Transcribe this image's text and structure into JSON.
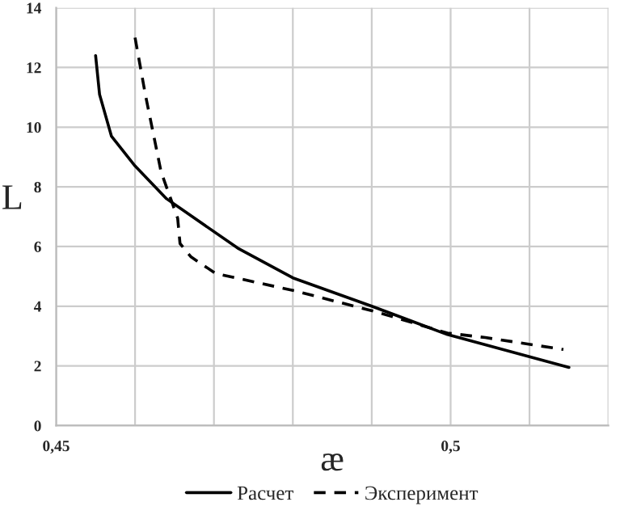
{
  "chart_data": {
    "type": "line",
    "xlabel": "æ",
    "ylabel": "L",
    "xlim": [
      0.45,
      0.52
    ],
    "ylim": [
      0,
      14
    ],
    "xticks": [
      {
        "value": 0.45,
        "label": "0,45"
      },
      {
        "value": 0.46,
        "label": null
      },
      {
        "value": 0.47,
        "label": null
      },
      {
        "value": 0.48,
        "label": null
      },
      {
        "value": 0.49,
        "label": null
      },
      {
        "value": 0.5,
        "label": "0,5"
      },
      {
        "value": 0.51,
        "label": null
      },
      {
        "value": 0.52,
        "label": null
      }
    ],
    "yticks": [
      0,
      2,
      4,
      6,
      8,
      10,
      12,
      14
    ],
    "grid": true,
    "legend": "bottom",
    "series": [
      {
        "name": "Расчет",
        "color": "#000000",
        "line_style": "solid",
        "x": [
          0.455,
          0.4555,
          0.457,
          0.46,
          0.464,
          0.473,
          0.48,
          0.49,
          0.4996,
          0.515
        ],
        "values": [
          12.4,
          11.1,
          9.7,
          8.7,
          7.6,
          5.95,
          4.95,
          4.0,
          3.05,
          1.95
        ]
      },
      {
        "name": "Эксперимент",
        "color": "#000000",
        "line_style": "dashed",
        "x": [
          0.46,
          0.4613,
          0.4633,
          0.4654,
          0.4657,
          0.4671,
          0.4702,
          0.4805,
          0.4907,
          0.4996,
          0.5044,
          0.5143
        ],
        "values": [
          13.0,
          11.1,
          8.5,
          6.95,
          6.1,
          5.65,
          5.1,
          4.5,
          3.8,
          3.1,
          2.95,
          2.55
        ]
      }
    ]
  }
}
